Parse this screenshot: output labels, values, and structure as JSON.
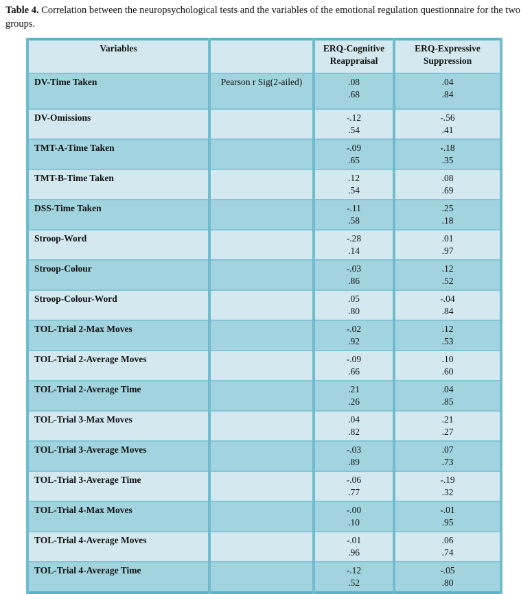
{
  "title": {
    "label": "Table 4.",
    "text": "Correlation between the neuropsychological tests and the variables of the emotional regulation questionnaire for the two groups."
  },
  "colors": {
    "row_dark": "#a2d4e0",
    "row_light": "#d3e9ef",
    "header_bg": "#d3e9ef",
    "border_vertical": "#6fbcce",
    "border_horizontal": "#82c5d5",
    "border_outer": "#5cb2c6",
    "text": "#121212"
  },
  "chart_data": {
    "type": "table",
    "title": "Table 4. Correlation between the neuropsychological tests and the variables of the emotional regulation questionnaire for the two groups.",
    "columns": [
      "Variables",
      "",
      "ERQ-Cognitive Reappraisal",
      "ERQ-Expressive Suppression"
    ],
    "rows": [
      [
        "DV-Time Taken",
        "Pearson r Sig(2-ailed)",
        ".08 / .68",
        ".04 / .84"
      ],
      [
        "DV-Omissions",
        "",
        "-.12 / .54",
        "-.56 / .41"
      ],
      [
        "TMT-A-Time Taken",
        "",
        "-.09 / .65",
        "-.18 / .35"
      ],
      [
        "TMT-B-Time Taken",
        "",
        ".12 / .54",
        ".08 / .69"
      ],
      [
        "DSS-Time Taken",
        "",
        "-.11 / .58",
        ".25 / .18"
      ],
      [
        "Stroop-Word",
        "",
        "-.28 / .14",
        ".01 / .97"
      ],
      [
        "Stroop-Colour",
        "",
        "-.03 / .86",
        ".12 / .52"
      ],
      [
        "Stroop-Colour-Word",
        "",
        ".05 / .80",
        "-.04 / .84"
      ],
      [
        "TOL-Trial 2-Max Moves",
        "",
        "-.02 / .92",
        ".12 / .53"
      ],
      [
        "TOL-Trial 2-Average Moves",
        "",
        "-.09 / .66",
        ".10 / .60"
      ],
      [
        "TOL-Trial 2-Average Time",
        "",
        ".21 / .26",
        ".04 / .85"
      ],
      [
        "TOL-Trial 3-Max Moves",
        "",
        ".04 / .82",
        ".21 / .27"
      ],
      [
        "TOL-Trial 3-Average Moves",
        "",
        "-.03 / .89",
        ".07 / .73"
      ],
      [
        "TOL-Trial 3-Average Time",
        "",
        "-.06 / .77",
        "-.19 / .32"
      ],
      [
        "TOL-Trial 4-Max Moves",
        "",
        "-.00 / .10",
        "-.01 / .95"
      ],
      [
        "TOL-Trial 4-Average Moves",
        "",
        "-.01 / .96",
        ".06 / .74"
      ],
      [
        "TOL-Trial 4-Average Time",
        "",
        "-.12 / .52",
        "-.05 / .80"
      ]
    ]
  },
  "table": {
    "headers": [
      "Variables",
      "",
      "ERQ-Cognitive Reappraisal",
      "ERQ-Expressive Suppression"
    ],
    "rows": [
      {
        "variable": "DV-Time Taken",
        "note": "Pearson r Sig(2-ailed)",
        "cog_r": ".08",
        "cog_sig": ".68",
        "sup_r": ".04",
        "sup_sig": ".84"
      },
      {
        "variable": "DV-Omissions",
        "note": "",
        "cog_r": "-.12",
        "cog_sig": ".54",
        "sup_r": "-.56",
        "sup_sig": ".41"
      },
      {
        "variable": "TMT-A-Time Taken",
        "note": "",
        "cog_r": "-.09",
        "cog_sig": ".65",
        "sup_r": "-.18",
        "sup_sig": ".35"
      },
      {
        "variable": "TMT-B-Time Taken",
        "note": "",
        "cog_r": ".12",
        "cog_sig": ".54",
        "sup_r": ".08",
        "sup_sig": ".69"
      },
      {
        "variable": "DSS-Time Taken",
        "note": "",
        "cog_r": "-.11",
        "cog_sig": ".58",
        "sup_r": ".25",
        "sup_sig": ".18"
      },
      {
        "variable": "Stroop-Word",
        "note": "",
        "cog_r": "-.28",
        "cog_sig": ".14",
        "sup_r": ".01",
        "sup_sig": ".97"
      },
      {
        "variable": "Stroop-Colour",
        "note": "",
        "cog_r": "-.03",
        "cog_sig": ".86",
        "sup_r": ".12",
        "sup_sig": ".52"
      },
      {
        "variable": "Stroop-Colour-Word",
        "note": "",
        "cog_r": ".05",
        "cog_sig": ".80",
        "sup_r": "-.04",
        "sup_sig": ".84"
      },
      {
        "variable": "TOL-Trial 2-Max Moves",
        "note": "",
        "cog_r": "-.02",
        "cog_sig": ".92",
        "sup_r": ".12",
        "sup_sig": ".53"
      },
      {
        "variable": "TOL-Trial 2-Average Moves",
        "note": "",
        "cog_r": "-.09",
        "cog_sig": ".66",
        "sup_r": ".10",
        "sup_sig": ".60"
      },
      {
        "variable": "TOL-Trial 2-Average Time",
        "note": "",
        "cog_r": ".21",
        "cog_sig": ".26",
        "sup_r": ".04",
        "sup_sig": ".85"
      },
      {
        "variable": "TOL-Trial 3-Max Moves",
        "note": "",
        "cog_r": ".04",
        "cog_sig": ".82",
        "sup_r": ".21",
        "sup_sig": ".27"
      },
      {
        "variable": "TOL-Trial 3-Average Moves",
        "note": "",
        "cog_r": "-.03",
        "cog_sig": ".89",
        "sup_r": ".07",
        "sup_sig": ".73"
      },
      {
        "variable": "TOL-Trial 3-Average Time",
        "note": "",
        "cog_r": "-.06",
        "cog_sig": ".77",
        "sup_r": "-.19",
        "sup_sig": ".32"
      },
      {
        "variable": "TOL-Trial 4-Max Moves",
        "note": "",
        "cog_r": "-.00",
        "cog_sig": ".10",
        "sup_r": "-.01",
        "sup_sig": ".95"
      },
      {
        "variable": "TOL-Trial 4-Average Moves",
        "note": "",
        "cog_r": "-.01",
        "cog_sig": ".96",
        "sup_r": ".06",
        "sup_sig": ".74"
      },
      {
        "variable": "TOL-Trial 4-Average Time",
        "note": "",
        "cog_r": "-.12",
        "cog_sig": ".52",
        "sup_r": "-.05",
        "sup_sig": ".80"
      }
    ]
  }
}
